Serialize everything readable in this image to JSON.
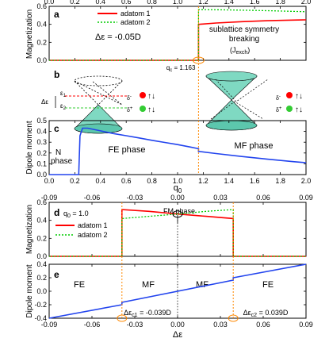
{
  "chart_data": [
    {
      "panel": "a",
      "type": "line",
      "ylabel": "Magnetization",
      "xlim": [
        0.0,
        2.0
      ],
      "ylim": [
        0.0,
        0.6
      ],
      "x_ticks": [
        "0.0",
        "0.2",
        "0.4",
        "0.6",
        "0.8",
        "1.0",
        "1.2",
        "1.4",
        "1.6",
        "1.8",
        "2.0"
      ],
      "y_ticks": [
        "0.0",
        "0.2",
        "0.4",
        "0.6"
      ],
      "legend": [
        "adatom 1",
        "adatom 2"
      ],
      "legend_placement": "top-left",
      "annotations": {
        "delta": "Δε = -0.05D",
        "breaking_l1": "sublattice symmetry",
        "breaking_l2": "breaking",
        "jexch": "(J",
        "jexch_sub": "exch",
        "jexch_close": ")",
        "qc": "q",
        "qc_sub": "c",
        "qc_val": " = 1.163"
      },
      "qc_value": 1.163,
      "series": [
        {
          "name": "adatom 1",
          "color": "#ff0000",
          "style": "solid",
          "x": [
            0.0,
            1.163,
            1.163,
            1.3,
            1.5,
            1.7,
            1.9,
            2.0
          ],
          "y": [
            0.0,
            0.0,
            0.4,
            0.415,
            0.43,
            0.44,
            0.447,
            0.45
          ]
        },
        {
          "name": "adatom 2",
          "color": "#00cc00",
          "style": "dotted",
          "x": [
            0.0,
            1.163,
            1.163,
            1.4,
            1.6,
            1.8,
            2.0
          ],
          "y": [
            0.0,
            0.0,
            0.565,
            0.56,
            0.555,
            0.548,
            0.54
          ]
        }
      ]
    },
    {
      "panel": "b",
      "type": "diagram",
      "labels": {
        "de": "Δε",
        "e1": "ε",
        "e1_sub": "1",
        "e2": "ε",
        "e2_sub": "2",
        "dm": "δ",
        "dm_sup": "-",
        "dp": "δ",
        "dp_sup": "+"
      },
      "colors": {
        "cone_fill": "#7fd9c2",
        "up_dot": "#ff0000",
        "down_dot": "#33cc33",
        "level_1": "#ff0000",
        "level_2": "#33cc33"
      }
    },
    {
      "panel": "c",
      "type": "line",
      "xlabel": "q",
      "xlabel_sub": "0",
      "ylabel": "Dipole moment",
      "xlim": [
        0.0,
        2.0
      ],
      "ylim": [
        0.0,
        0.5
      ],
      "x_ticks": [
        "0.0",
        "0.2",
        "0.4",
        "0.6",
        "0.8",
        "1.0",
        "1.2",
        "1.4",
        "1.6",
        "1.8",
        "2.0"
      ],
      "y_ticks": [
        "0.0",
        "0.1",
        "0.2",
        "0.3",
        "0.4",
        "0.5"
      ],
      "phase_labels": {
        "n1": "N",
        "n2": "phase",
        "fe": "FE phase",
        "mf": "MF phase"
      },
      "series": [
        {
          "name": "",
          "color": "#2244ee",
          "style": "solid",
          "x": [
            0.0,
            0.23,
            0.24,
            0.26,
            0.3,
            0.4,
            0.5,
            0.6,
            0.7,
            0.8,
            0.9,
            1.0,
            1.1,
            1.163,
            1.163,
            1.3,
            1.5,
            1.7,
            1.9,
            2.0
          ],
          "y": [
            0.0,
            0.0,
            0.36,
            0.43,
            0.43,
            0.405,
            0.38,
            0.36,
            0.34,
            0.318,
            0.298,
            0.278,
            0.255,
            0.24,
            0.215,
            0.195,
            0.168,
            0.143,
            0.12,
            0.11
          ]
        }
      ]
    },
    {
      "panel": "d",
      "type": "line",
      "ylabel": "Magnetization",
      "xlim": [
        -0.09,
        0.09
      ],
      "ylim": [
        0.0,
        0.6
      ],
      "x_ticks": [
        "-0.09",
        "-0.06",
        "-0.03",
        "0.00",
        "0.03",
        "0.06",
        "0.09"
      ],
      "y_ticks": [
        "0.0",
        "0.2",
        "0.4",
        "0.6"
      ],
      "legend": [
        "adatom 1",
        "adatom 2"
      ],
      "annotations": {
        "q0": "q",
        "q0_sub": "0",
        "q0_val": " = 1.0",
        "fm": "FM phase"
      },
      "series": [
        {
          "name": "adatom 1",
          "color": "#ff0000",
          "style": "solid",
          "x": [
            -0.09,
            -0.039,
            -0.039,
            -0.02,
            0.0,
            0.02,
            0.039,
            0.039,
            0.09
          ],
          "y": [
            0.0,
            0.0,
            0.52,
            0.5,
            0.47,
            0.445,
            0.42,
            0.0,
            0.0
          ]
        },
        {
          "name": "adatom 2",
          "color": "#00cc00",
          "style": "dotted",
          "x": [
            -0.09,
            -0.039,
            -0.039,
            -0.02,
            0.0,
            0.02,
            0.039,
            0.039,
            0.09
          ],
          "y": [
            0.0,
            0.0,
            0.42,
            0.445,
            0.47,
            0.5,
            0.52,
            0.0,
            0.0
          ]
        }
      ]
    },
    {
      "panel": "e",
      "type": "line",
      "xlabel": "Δε",
      "ylabel": "Dipole moment",
      "xlim": [
        -0.09,
        0.09
      ],
      "ylim": [
        -0.4,
        0.4
      ],
      "x_ticks": [
        "-0.09",
        "-0.06",
        "-0.03",
        "0.00",
        "0.03",
        "0.06",
        "0.09"
      ],
      "y_ticks": [
        "-0.4",
        "-0.2",
        "0.0",
        "0.2",
        "0.4"
      ],
      "phase_labels": {
        "fe_left": "FE",
        "mf_left": "MF",
        "mf_right": "MF",
        "fe_right": "FE"
      },
      "annotations": {
        "c1": "Δε",
        "c1_sub": "c1",
        "c1_val": " = -0.039D",
        "c2": "Δε",
        "c2_sub": "c2",
        "c2_val": " = 0.039D"
      },
      "critical_values": [
        -0.039,
        0.039
      ],
      "series": [
        {
          "name": "",
          "color": "#2244ee",
          "style": "solid",
          "x": [
            -0.09,
            -0.039,
            -0.039,
            0.039,
            0.039,
            0.09
          ],
          "y": [
            -0.4,
            -0.2,
            -0.165,
            0.165,
            0.2,
            0.4
          ]
        }
      ]
    }
  ]
}
